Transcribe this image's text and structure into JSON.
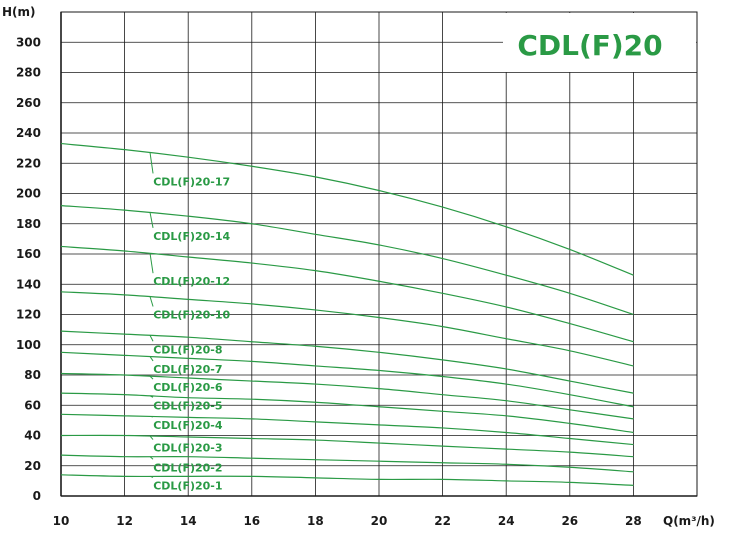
{
  "chart_data": {
    "type": "line",
    "title": "CDL(F)20",
    "xlabel": "Q(m³/h)",
    "ylabel": "H(m)",
    "xlim": [
      10,
      30
    ],
    "ylim": [
      0,
      320
    ],
    "xticks": [
      10,
      12,
      14,
      16,
      18,
      20,
      22,
      24,
      26,
      28
    ],
    "yticks": [
      0,
      20,
      40,
      60,
      80,
      100,
      120,
      140,
      160,
      180,
      200,
      220,
      240,
      260,
      280,
      300
    ],
    "grid": true,
    "legend": "none",
    "series": [
      {
        "name": "CDL(F)20-17",
        "x": [
          10,
          12,
          14,
          16,
          18,
          20,
          22,
          24,
          26,
          28
        ],
        "y": [
          233,
          229,
          224,
          218,
          211,
          202,
          191,
          178,
          163,
          146
        ]
      },
      {
        "name": "CDL(F)20-14",
        "x": [
          10,
          12,
          14,
          16,
          18,
          20,
          22,
          24,
          26,
          28
        ],
        "y": [
          192,
          189,
          185,
          180,
          173,
          166,
          157,
          146,
          134,
          120
        ]
      },
      {
        "name": "CDL(F)20-12",
        "x": [
          10,
          12,
          14,
          16,
          18,
          20,
          22,
          24,
          26,
          28
        ],
        "y": [
          165,
          162,
          158,
          154,
          149,
          142,
          134,
          125,
          114,
          102
        ]
      },
      {
        "name": "CDL(F)20-10",
        "x": [
          10,
          12,
          14,
          16,
          18,
          20,
          22,
          24,
          26,
          28
        ],
        "y": [
          135,
          133,
          130,
          127,
          123,
          118,
          112,
          104,
          96,
          86
        ]
      },
      {
        "name": "CDL(F)20-8",
        "x": [
          10,
          12,
          14,
          16,
          18,
          20,
          22,
          24,
          26,
          28
        ],
        "y": [
          109,
          107,
          105,
          102,
          99,
          95,
          90,
          84,
          76,
          68
        ]
      },
      {
        "name": "CDL(F)20-7",
        "x": [
          10,
          12,
          14,
          16,
          18,
          20,
          22,
          24,
          26,
          28
        ],
        "y": [
          95,
          93,
          91,
          89,
          86,
          83,
          79,
          74,
          67,
          59
        ]
      },
      {
        "name": "CDL(F)20-6",
        "x": [
          10,
          12,
          14,
          16,
          18,
          20,
          22,
          24,
          26,
          28
        ],
        "y": [
          81,
          80,
          78,
          76,
          74,
          71,
          67,
          63,
          57,
          51
        ]
      },
      {
        "name": "CDL(F)20-5",
        "x": [
          10,
          12,
          14,
          16,
          18,
          20,
          22,
          24,
          26,
          28
        ],
        "y": [
          68,
          67,
          65,
          64,
          62,
          59,
          56,
          53,
          48,
          42
        ]
      },
      {
        "name": "CDL(F)20-4",
        "x": [
          10,
          12,
          14,
          16,
          18,
          20,
          22,
          24,
          26,
          28
        ],
        "y": [
          54,
          53,
          52,
          51,
          49,
          47,
          45,
          42,
          38,
          34
        ]
      },
      {
        "name": "CDL(F)20-3",
        "x": [
          10,
          12,
          14,
          16,
          18,
          20,
          22,
          24,
          26,
          28
        ],
        "y": [
          40,
          40,
          39,
          38,
          37,
          35,
          33,
          31,
          29,
          26
        ]
      },
      {
        "name": "CDL(F)20-2",
        "x": [
          10,
          12,
          14,
          16,
          18,
          20,
          22,
          24,
          26,
          28
        ],
        "y": [
          27,
          26,
          26,
          25,
          24,
          23,
          22,
          21,
          19,
          16
        ]
      },
      {
        "name": "CDL(F)20-1",
        "x": [
          10,
          12,
          14,
          16,
          18,
          20,
          22,
          24,
          26,
          28
        ],
        "y": [
          14,
          13,
          13,
          13,
          12,
          11,
          11,
          10,
          9,
          7
        ]
      }
    ],
    "label_anchors": [
      {
        "name": "CDL(F)20-17",
        "y": 208
      },
      {
        "name": "CDL(F)20-14",
        "y": 172
      },
      {
        "name": "CDL(F)20-12",
        "y": 142
      },
      {
        "name": "CDL(F)20-10",
        "y": 120
      },
      {
        "name": "CDL(F)20-8",
        "y": 97
      },
      {
        "name": "CDL(F)20-7",
        "y": 84
      },
      {
        "name": "CDL(F)20-6",
        "y": 72
      },
      {
        "name": "CDL(F)20-5",
        "y": 60
      },
      {
        "name": "CDL(F)20-4",
        "y": 47
      },
      {
        "name": "CDL(F)20-3",
        "y": 32
      },
      {
        "name": "CDL(F)20-2",
        "y": 19
      },
      {
        "name": "CDL(F)20-1",
        "y": 7
      }
    ],
    "colors": {
      "curve": "#2a9a45",
      "grid": "#1a1a1a",
      "axis": "#1a1a1a",
      "title": "#2a9a45"
    }
  }
}
